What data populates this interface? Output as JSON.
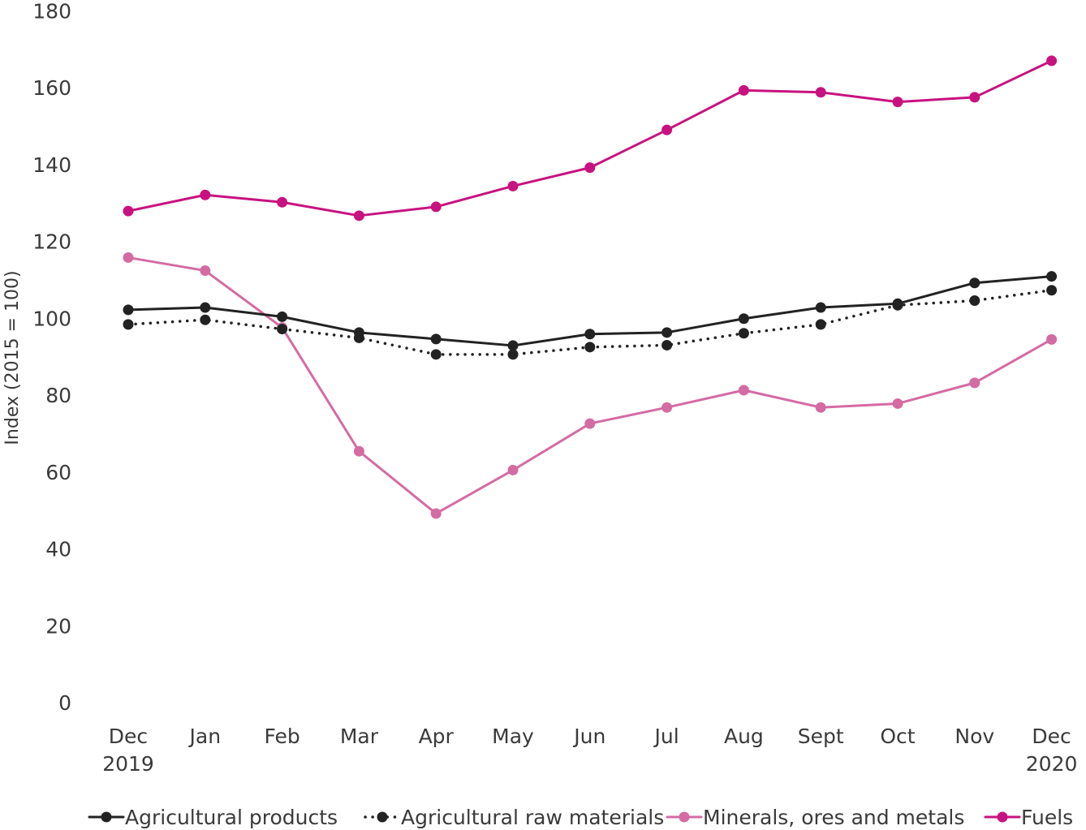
{
  "chart_data": {
    "type": "line",
    "title": "",
    "xlabel": "",
    "ylabel": "Index (2015 = 100)",
    "ylim": [
      0,
      180
    ],
    "y_ticks": [
      "0",
      "20",
      "40",
      "60",
      "80",
      "100",
      "120",
      "140",
      "160",
      "180"
    ],
    "grid": false,
    "legend_position": "bottom",
    "categories": [
      "Dec 2019",
      "Jan",
      "Feb",
      "Mar",
      "Apr",
      "May",
      "Jun",
      "Jul",
      "Aug",
      "Sept",
      "Oct",
      "Nov",
      "Dec 2020"
    ],
    "x_tick_labels": [
      [
        "Dec",
        "2019"
      ],
      [
        "Jan"
      ],
      [
        "Feb"
      ],
      [
        "Mar"
      ],
      [
        "Apr"
      ],
      [
        "May"
      ],
      [
        "Jun"
      ],
      [
        "Jul"
      ],
      [
        "Aug"
      ],
      [
        "Sept"
      ],
      [
        "Oct"
      ],
      [
        "Nov"
      ],
      [
        "Dec",
        "2020"
      ]
    ],
    "series": [
      {
        "name": "Agricultural products",
        "color": "#222222",
        "line_style": "solid",
        "values": [
          102.2,
          102.8,
          100.4,
          96.3,
          94.6,
          92.9,
          95.9,
          96.3,
          99.9,
          102.8,
          103.8,
          109.2,
          110.9
        ]
      },
      {
        "name": "Agricultural raw materials",
        "color": "#222222",
        "line_style": "dotted",
        "values": [
          98.4,
          99.6,
          97.2,
          94.9,
          90.6,
          90.6,
          92.5,
          93.0,
          96.1,
          98.4,
          103.4,
          104.6,
          107.3
        ]
      },
      {
        "name": "Minerals, ores and metals",
        "color": "#D46BA3",
        "line_style": "solid",
        "values": [
          115.8,
          112.4,
          97.6,
          65.4,
          49.2,
          60.5,
          72.6,
          76.8,
          81.3,
          76.8,
          77.8,
          83.2,
          94.5
        ]
      },
      {
        "name": "Fuels",
        "color": "#C8127F",
        "line_style": "solid",
        "values": [
          127.9,
          132.1,
          130.2,
          126.7,
          129.0,
          134.4,
          139.2,
          149.0,
          159.3,
          158.8,
          156.3,
          157.5,
          167.0
        ]
      }
    ]
  }
}
